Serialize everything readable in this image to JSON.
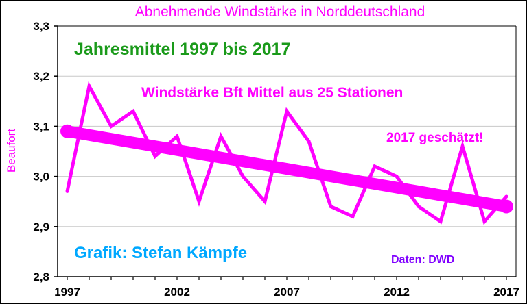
{
  "chart_data": {
    "type": "line",
    "title": "Abnehmende Windstärke in Norddeutschland",
    "subtitle": "Jahresmittel 1997 bis 2017",
    "ylabel": "Beaufort",
    "xlabel": "",
    "x": [
      1997,
      1998,
      1999,
      2000,
      2001,
      2002,
      2003,
      2004,
      2005,
      2006,
      2007,
      2008,
      2009,
      2010,
      2011,
      2012,
      2013,
      2014,
      2015,
      2016,
      2017
    ],
    "xticks": [
      1997,
      2002,
      2007,
      2012,
      2017
    ],
    "xtick_labels": [
      "1997",
      "2002",
      "2007",
      "2012",
      "2017"
    ],
    "ylim": [
      2.8,
      3.3
    ],
    "yticks": [
      2.8,
      2.9,
      3.0,
      3.1,
      3.2,
      3.3
    ],
    "ytick_labels": [
      "2,8",
      "2,9",
      "3,0",
      "3,1",
      "3,2",
      "3,3"
    ],
    "grid": true,
    "series": [
      {
        "name": "Windstärke Bft Mittel aus 25 Stationen",
        "color": "#ff00ff",
        "values": [
          2.97,
          3.18,
          3.1,
          3.13,
          3.04,
          3.08,
          2.95,
          3.08,
          3.0,
          2.95,
          3.13,
          3.07,
          2.94,
          2.92,
          3.02,
          3.0,
          2.94,
          2.91,
          3.06,
          2.91,
          2.96
        ]
      },
      {
        "name": "trend",
        "color": "#ff00ff",
        "values": [
          3.09,
          2.94
        ],
        "x": [
          1997,
          2017
        ]
      }
    ],
    "annotations": [
      {
        "text": "Windstärke Bft Mittel aus 25 Stationen",
        "color": "#ff00ff"
      },
      {
        "text": "2017 geschätzt!",
        "color": "#ff00ff"
      },
      {
        "text": "Grafik: Stefan Kämpfe",
        "color": "#00a8ff"
      },
      {
        "text": "Daten: DWD",
        "color": "#8000ff"
      }
    ],
    "colors": {
      "title": "#ff00ff",
      "subtitle": "#1a9a1a",
      "ylabel": "#ff00ff"
    }
  }
}
